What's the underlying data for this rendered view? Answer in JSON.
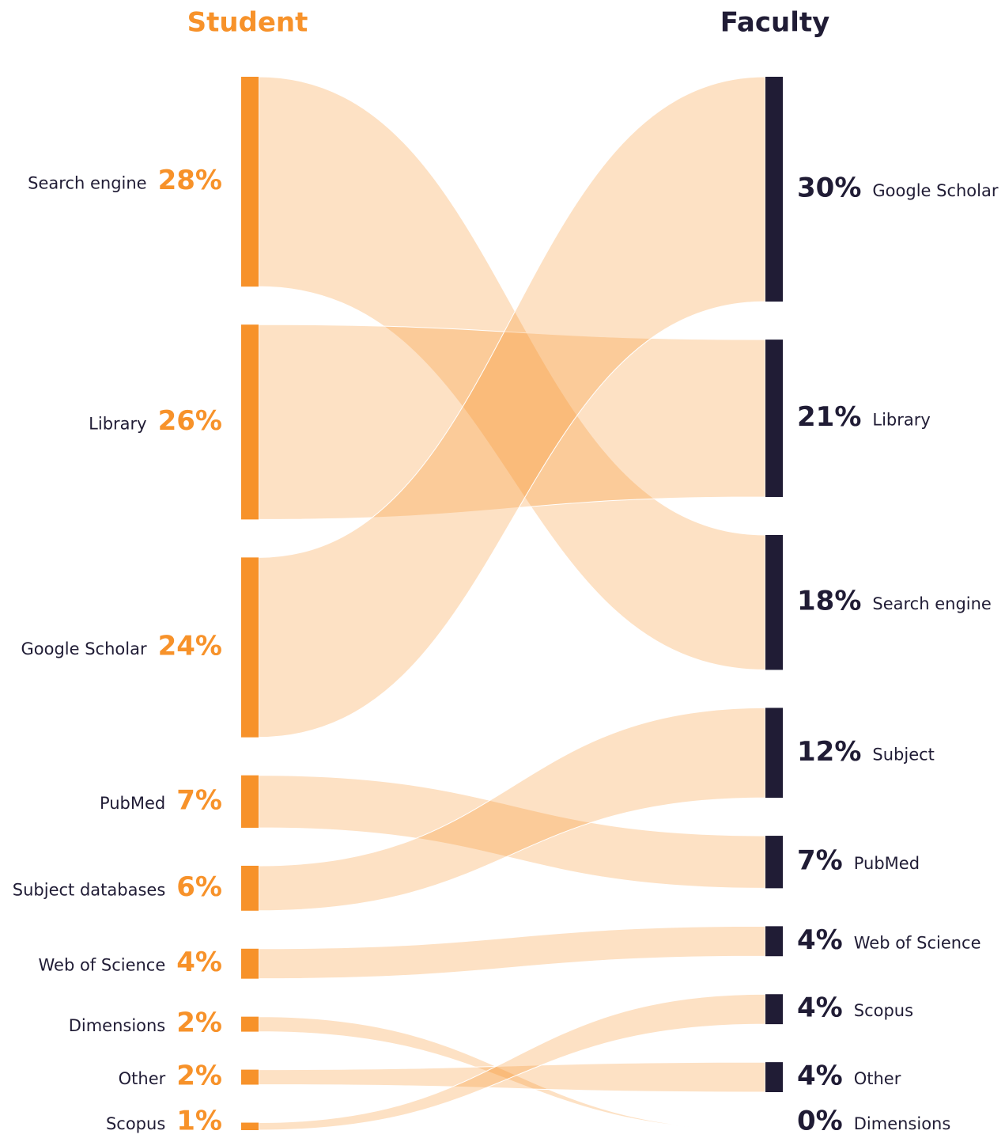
{
  "chart_data": {
    "type": "sankey",
    "series": [
      {
        "name": "Student",
        "color": "#f7922a",
        "categories": [
          "Search engine",
          "Library",
          "Google Scholar",
          "PubMed",
          "Subject databases",
          "Web of Science",
          "Dimensions",
          "Other",
          "Scopus"
        ],
        "values": [
          28,
          26,
          24,
          7,
          6,
          4,
          2,
          2,
          1
        ],
        "value_labels": [
          "28%",
          "26%",
          "24%",
          "7%",
          "6%",
          "4%",
          "2%",
          "2%",
          "1%"
        ]
      },
      {
        "name": "Faculty",
        "color": "#201c35",
        "categories": [
          "Google Scholar",
          "Library",
          "Search engine",
          "Subject",
          "PubMed",
          "Web of Science",
          "Scopus",
          "Other",
          "Dimensions"
        ],
        "values": [
          30,
          21,
          18,
          12,
          7,
          4,
          4,
          4,
          0
        ],
        "value_labels": [
          "30%",
          "21%",
          "18%",
          "12%",
          "7%",
          "4%",
          "4%",
          "4%",
          "0%"
        ]
      }
    ],
    "links": [
      [
        0,
        2
      ],
      [
        1,
        1
      ],
      [
        2,
        0
      ],
      [
        3,
        4
      ],
      [
        4,
        3
      ],
      [
        5,
        5
      ],
      [
        6,
        8
      ],
      [
        7,
        7
      ],
      [
        8,
        6
      ]
    ]
  }
}
